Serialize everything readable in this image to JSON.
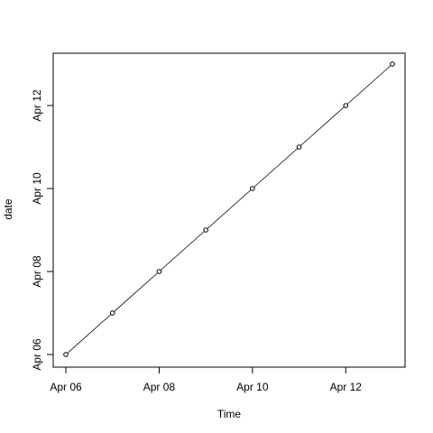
{
  "chart_data": {
    "type": "line",
    "title": "",
    "xlabel": "Time",
    "ylabel": "date",
    "x": [
      "2024-04-06",
      "2024-04-07",
      "2024-04-08",
      "2024-04-09",
      "2024-04-10",
      "2024-04-11",
      "2024-04-12",
      "2024-04-13"
    ],
    "series": [
      {
        "values": [
          "2024-04-06",
          "2024-04-07",
          "2024-04-08",
          "2024-04-09",
          "2024-04-10",
          "2024-04-11",
          "2024-04-12",
          "2024-04-13"
        ],
        "marker": "open-circle",
        "line_color": "#000000"
      }
    ],
    "xlim": [
      "2024-04-06",
      "2024-04-13"
    ],
    "ylim": [
      "2024-04-06",
      "2024-04-13"
    ],
    "x_ticks": [
      {
        "value": "2024-04-06",
        "label": "Apr 06"
      },
      {
        "value": "2024-04-08",
        "label": "Apr 08"
      },
      {
        "value": "2024-04-10",
        "label": "Apr 10"
      },
      {
        "value": "2024-04-12",
        "label": "Apr 12"
      }
    ],
    "y_ticks": [
      {
        "value": "2024-04-06",
        "label": "Apr 06"
      },
      {
        "value": "2024-04-08",
        "label": "Apr 08"
      },
      {
        "value": "2024-04-10",
        "label": "Apr 10"
      },
      {
        "value": "2024-04-12",
        "label": "Apr 12"
      }
    ],
    "grid": false,
    "legend": "none"
  }
}
